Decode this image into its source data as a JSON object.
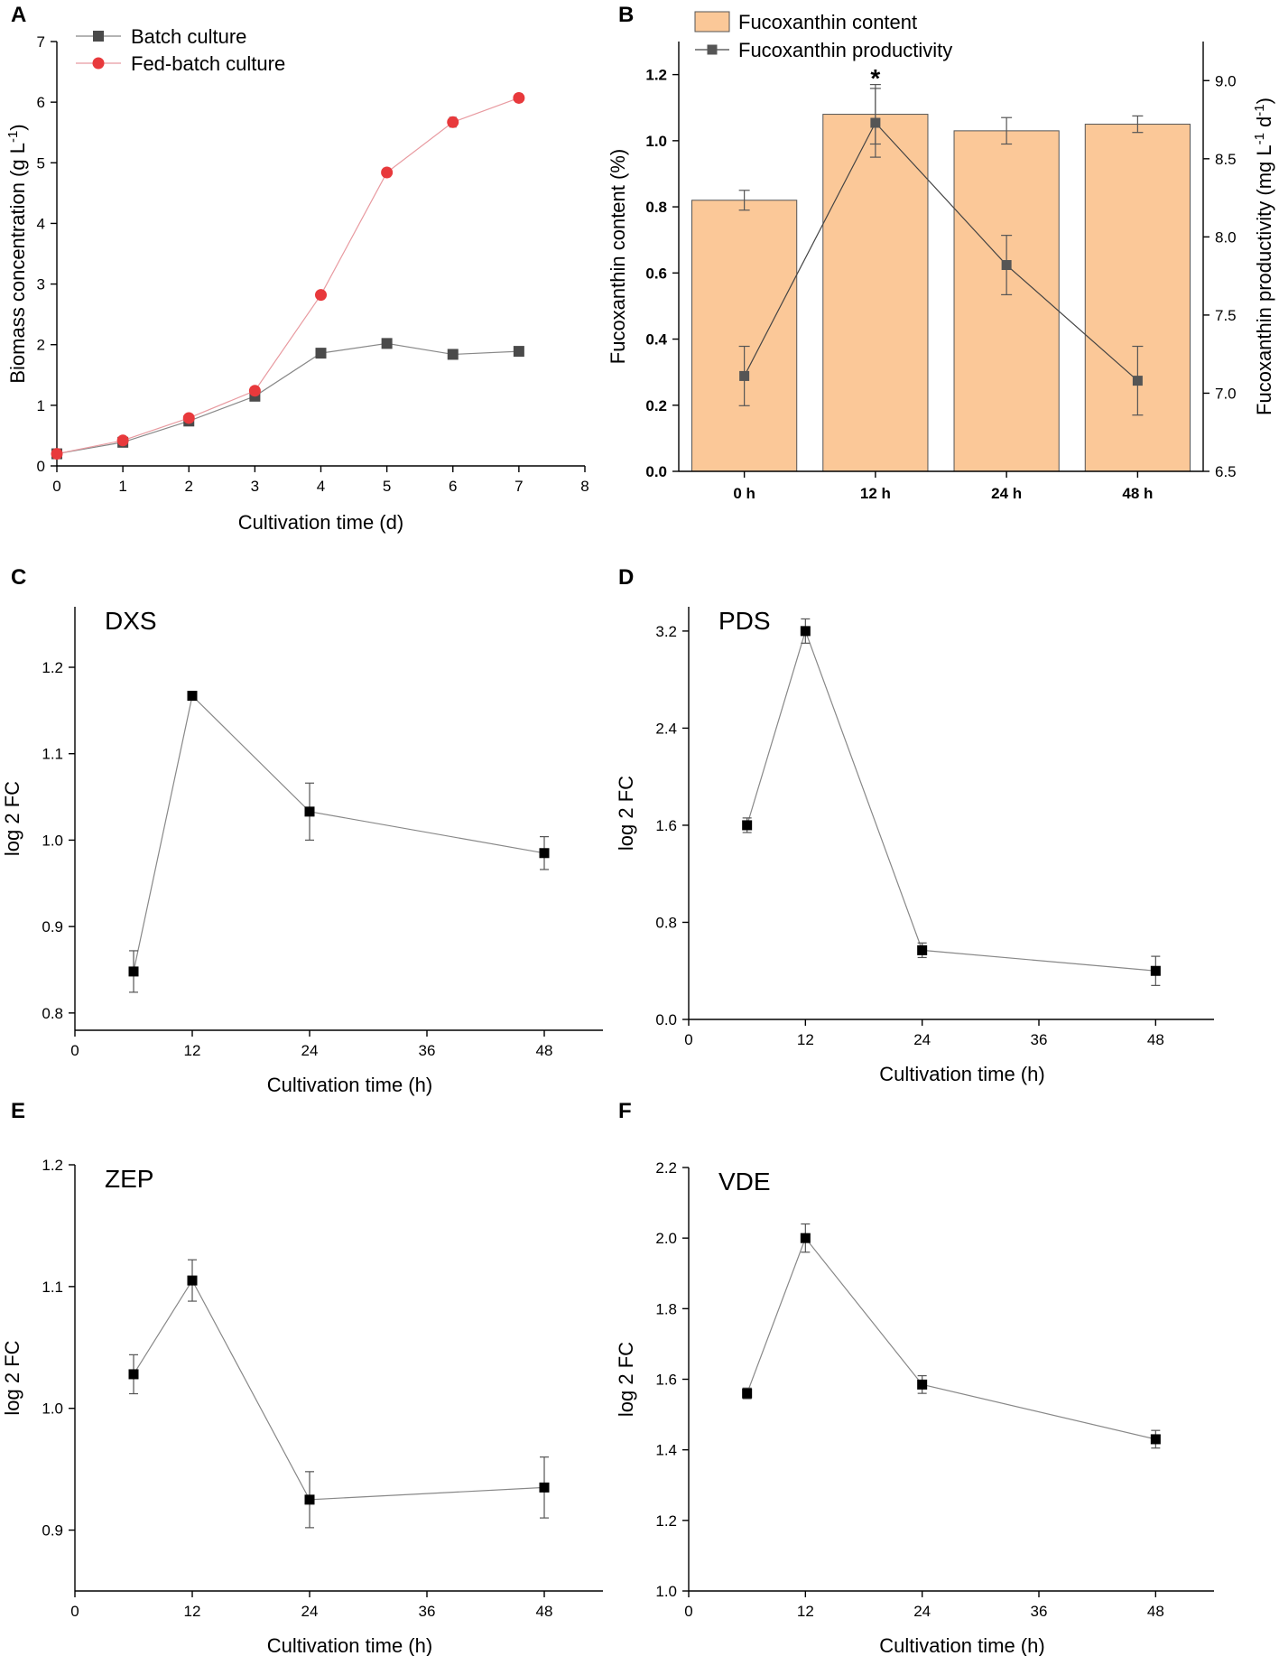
{
  "chart_data": [
    {
      "panel": "A",
      "type": "line",
      "xlabel": "Cultivation time (d)",
      "ylabel": "Biomass concentration (g L⁻¹)",
      "ylabel_parts": {
        "main": "Biomass concentration (g L",
        "sup": "-1",
        "end": ")"
      },
      "xlim": [
        0,
        8
      ],
      "ylim": [
        0,
        7
      ],
      "xticks": [
        0,
        1,
        2,
        3,
        4,
        5,
        6,
        7,
        8
      ],
      "yticks": [
        0,
        1,
        2,
        3,
        4,
        5,
        6,
        7
      ],
      "legend": "top-left",
      "series": [
        {
          "name": "Batch culture",
          "color": "#4a4a4a",
          "marker": "square",
          "x": [
            0,
            1,
            2,
            3,
            4,
            5,
            6,
            7
          ],
          "y": [
            0.2,
            0.39,
            0.74,
            1.15,
            1.86,
            2.02,
            1.84,
            1.89
          ],
          "err": [
            0.02,
            0.02,
            0.03,
            0.03,
            0.04,
            0.05,
            0.04,
            0.04
          ]
        },
        {
          "name": "Fed-batch culture",
          "color": "#e8393c",
          "marker": "circle",
          "x": [
            0,
            1,
            2,
            3,
            4,
            5,
            6,
            7
          ],
          "y": [
            0.2,
            0.42,
            0.79,
            1.24,
            2.82,
            4.84,
            5.67,
            6.07
          ],
          "err": [
            0.02,
            0.03,
            0.03,
            0.04,
            0.05,
            0.07,
            0.08,
            0.07
          ]
        }
      ]
    },
    {
      "panel": "B",
      "type": "bar",
      "categories": [
        "0 h",
        "12 h",
        "24 h",
        "48 h"
      ],
      "ylabel": "Fucoxanthin content (%)",
      "y2label": "Fucoxanthin productivity (mg L⁻¹ d⁻¹)",
      "y2label_parts": {
        "main": "Fucoxanthin productivity (mg L",
        "sup1": "-1",
        "mid": " d",
        "sup2": "-1",
        "end": ")"
      },
      "ylim": [
        0,
        1.3
      ],
      "y2lim": [
        6.5,
        9.25
      ],
      "yticks": [
        0.0,
        0.2,
        0.4,
        0.6,
        0.8,
        1.0,
        1.2
      ],
      "y2ticks": [
        6.5,
        7.0,
        7.5,
        8.0,
        8.5,
        9.0
      ],
      "legend": "top-left",
      "annotation": "*",
      "bar_color": "#fbc898",
      "line_color": "#555555",
      "series": [
        {
          "name": "Fucoxanthin content",
          "axis": "left",
          "kind": "bar",
          "values": [
            0.82,
            1.08,
            1.03,
            1.05
          ],
          "err": [
            0.03,
            0.09,
            0.04,
            0.025
          ]
        },
        {
          "name": "Fucoxanthin productivity",
          "axis": "right",
          "kind": "line",
          "values": [
            7.11,
            8.73,
            7.82,
            7.08
          ],
          "err": [
            0.19,
            0.22,
            0.19,
            0.22
          ]
        }
      ]
    },
    {
      "panel": "C",
      "type": "line",
      "gene": "DXS",
      "xlabel": "Cultivation time (h)",
      "ylabel": "log 2 FC",
      "xlim": [
        0,
        54
      ],
      "ylim": [
        0.78,
        1.27
      ],
      "xticks": [
        0,
        12,
        24,
        36,
        48
      ],
      "yticks": [
        0.8,
        0.9,
        1.0,
        1.1,
        1.2
      ],
      "x": [
        6,
        12,
        24,
        48
      ],
      "y": [
        0.848,
        1.167,
        1.033,
        0.985
      ],
      "err": [
        0.024,
        0.0,
        0.033,
        0.019
      ]
    },
    {
      "panel": "D",
      "type": "line",
      "gene": "PDS",
      "xlabel": "Cultivation time (h)",
      "ylabel": "log 2 FC",
      "xlim": [
        0,
        54
      ],
      "ylim": [
        0,
        3.4
      ],
      "xticks": [
        0,
        12,
        24,
        36,
        48
      ],
      "yticks": [
        0.0,
        0.8,
        1.6,
        2.4,
        3.2
      ],
      "x": [
        6,
        12,
        24,
        48
      ],
      "y": [
        1.6,
        3.2,
        0.57,
        0.4
      ],
      "err": [
        0.06,
        0.1,
        0.06,
        0.12
      ]
    },
    {
      "panel": "E",
      "type": "line",
      "gene": "ZEP",
      "xlabel": "Cultivation time (h)",
      "ylabel": "log 2 FC",
      "xlim": [
        0,
        54
      ],
      "ylim": [
        0.85,
        1.2
      ],
      "xticks": [
        0,
        12,
        24,
        36,
        48
      ],
      "yticks": [
        0.9,
        1.0,
        1.1,
        1.2
      ],
      "x": [
        6,
        12,
        24,
        48
      ],
      "y": [
        1.028,
        1.105,
        0.925,
        0.935
      ],
      "err": [
        0.016,
        0.017,
        0.023,
        0.025
      ]
    },
    {
      "panel": "F",
      "type": "line",
      "gene": "VDE",
      "xlabel": "Cultivation time (h)",
      "ylabel": "log 2 FC",
      "xlim": [
        0,
        54
      ],
      "ylim": [
        1.0,
        2.2
      ],
      "xticks": [
        0,
        12,
        24,
        36,
        48
      ],
      "yticks": [
        1.0,
        1.2,
        1.4,
        1.6,
        1.8,
        2.0,
        2.2
      ],
      "x": [
        6,
        12,
        24,
        48
      ],
      "y": [
        1.56,
        2.0,
        1.585,
        1.43
      ],
      "err": [
        0.015,
        0.04,
        0.025,
        0.025
      ]
    }
  ]
}
